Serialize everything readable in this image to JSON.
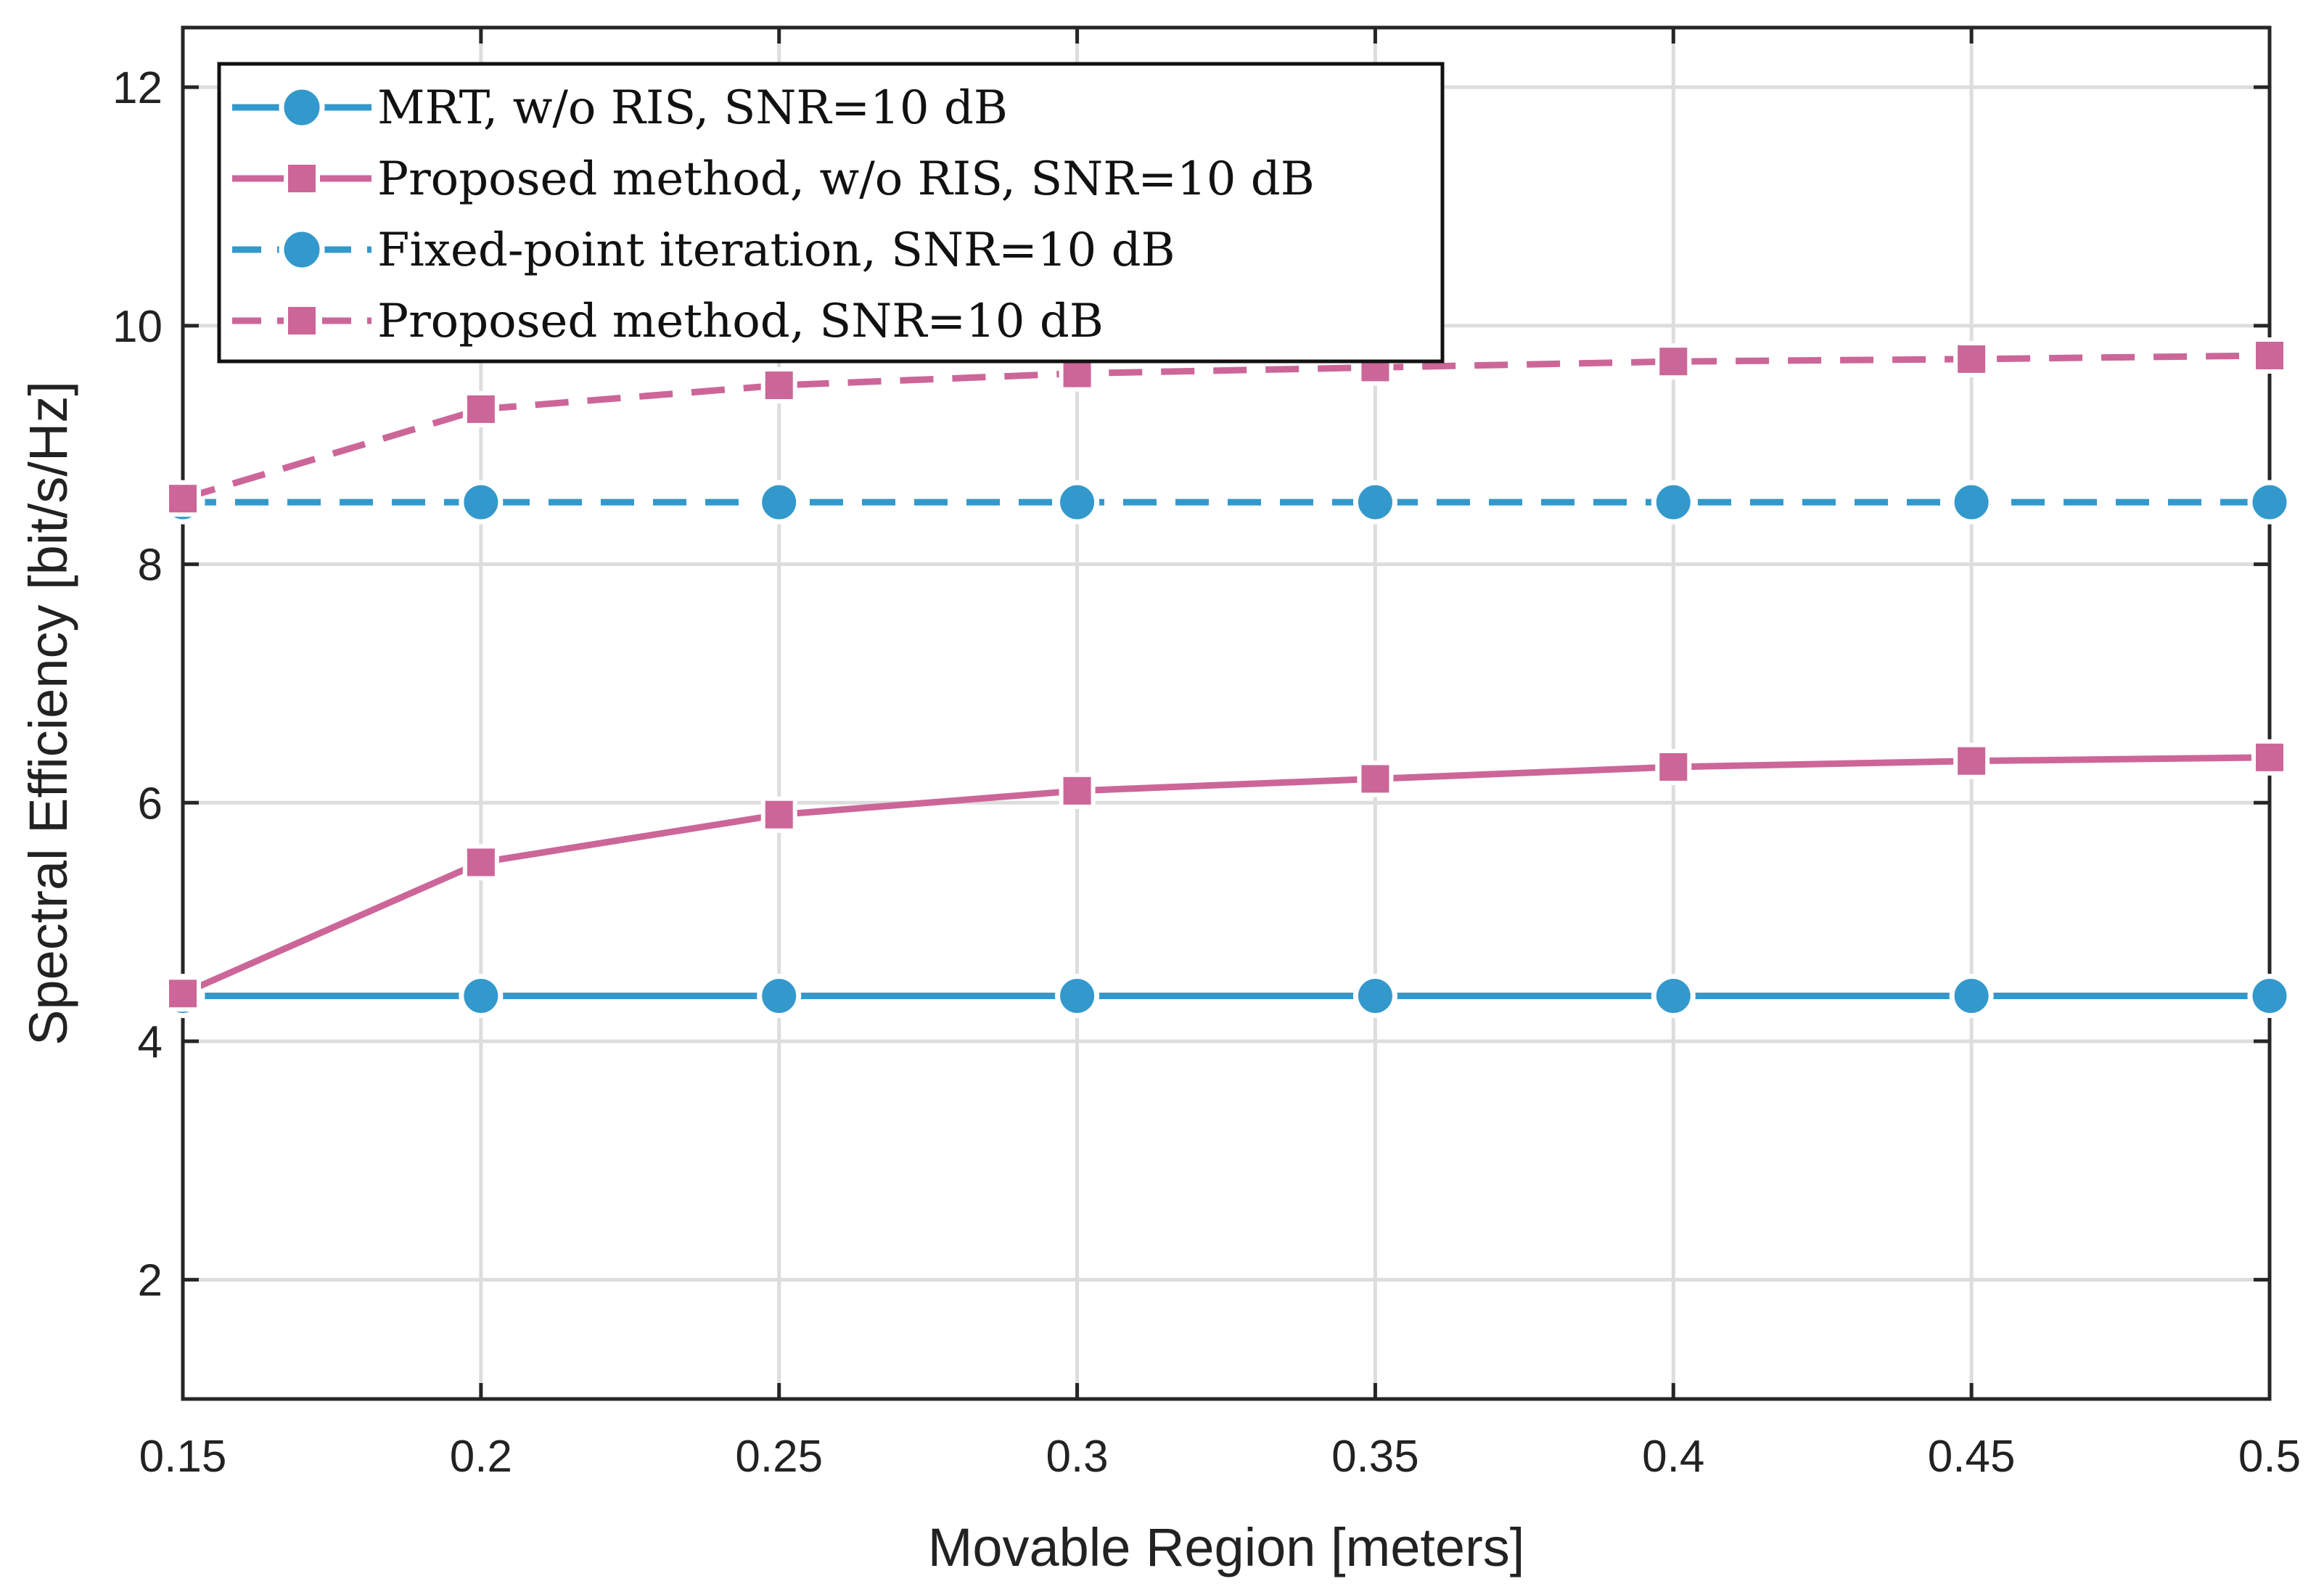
{
  "chart_data": {
    "type": "line",
    "title": "",
    "xlabel": "Movable Region [meters]",
    "ylabel": "Spectral Efficiency [bit/s/Hz]",
    "x": [
      0.15,
      0.2,
      0.25,
      0.3,
      0.35,
      0.4,
      0.45,
      0.5
    ],
    "xlim": [
      0.15,
      0.5
    ],
    "ylim": [
      1,
      12.5
    ],
    "xticks": [
      0.15,
      0.2,
      0.25,
      0.3,
      0.35,
      0.4,
      0.45,
      0.5
    ],
    "xtick_labels": [
      "0.15",
      "0.2",
      "0.25",
      "0.3",
      "0.35",
      "0.4",
      "0.45",
      "0.5"
    ],
    "yticks": [
      2,
      4,
      6,
      8,
      10,
      12
    ],
    "ytick_labels": [
      "2",
      "4",
      "6",
      "8",
      "10",
      "12"
    ],
    "grid": true,
    "legend_position": "top-left",
    "series": [
      {
        "name": "MRT, w/o RIS, SNR=10 dB",
        "color": "#3399CC",
        "line": "solid",
        "marker": "circle",
        "values": [
          4.38,
          4.38,
          4.38,
          4.38,
          4.38,
          4.38,
          4.38,
          4.38
        ]
      },
      {
        "name": "Proposed method, w/o RIS, SNR=10 dB",
        "color": "#CC6699",
        "line": "solid",
        "marker": "square",
        "values": [
          4.4,
          5.5,
          5.9,
          6.1,
          6.2,
          6.3,
          6.35,
          6.38
        ]
      },
      {
        "name": "Fixed-point iteration, SNR=10 dB",
        "color": "#3399CC",
        "line": "dashed",
        "marker": "circle",
        "values": [
          8.52,
          8.52,
          8.52,
          8.52,
          8.52,
          8.52,
          8.52,
          8.52
        ]
      },
      {
        "name": "Proposed method, SNR=10 dB",
        "color": "#CC6699",
        "line": "dashed",
        "marker": "square",
        "values": [
          8.55,
          9.3,
          9.5,
          9.6,
          9.65,
          9.7,
          9.72,
          9.75
        ]
      }
    ]
  }
}
